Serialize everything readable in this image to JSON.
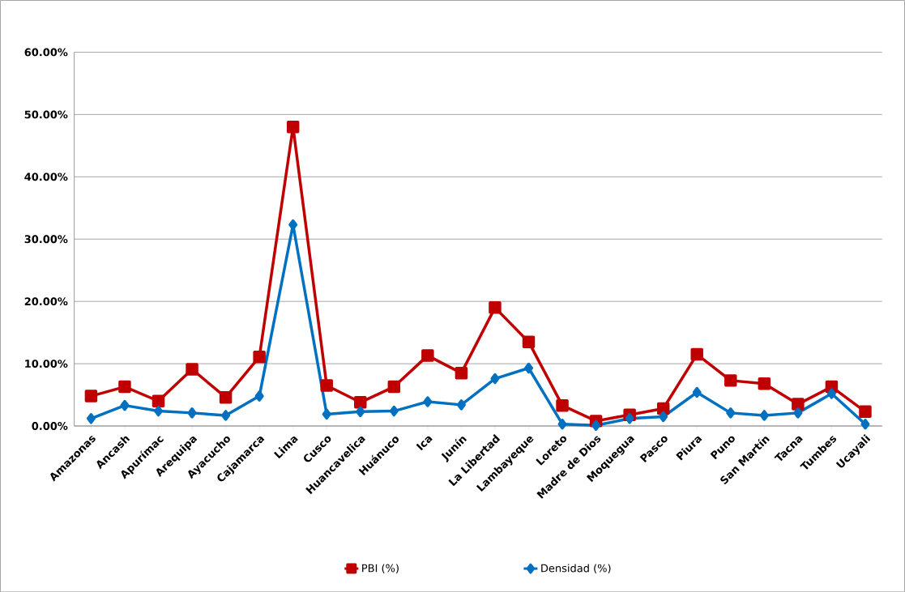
{
  "chart_data": {
    "type": "line",
    "categories": [
      "Amazonas",
      "Ancash",
      "Apurímac",
      "Arequipa",
      "Ayacucho",
      "Cajamarca",
      "Lima",
      "Cusco",
      "Huancavelica",
      "Huánuco",
      "Ica",
      "Junín",
      "La Libertad",
      "Lambayeque",
      "Loreto",
      "Madre de Dios",
      "Moquegua",
      "Pasco",
      "Piura",
      "Puno",
      "San Martín",
      "Tacna",
      "Tumbes",
      "Ucayali"
    ],
    "series": [
      {
        "name": "PBI (%)",
        "color": "#c00000",
        "marker": "square",
        "values": [
          4.8,
          6.3,
          4.0,
          9.1,
          4.6,
          11.1,
          48.0,
          6.5,
          3.8,
          6.3,
          11.3,
          8.5,
          19.0,
          13.5,
          3.3,
          0.8,
          1.8,
          2.8,
          11.5,
          7.3,
          6.8,
          3.5,
          6.3,
          2.3
        ]
      },
      {
        "name": "Densidad (%)",
        "color": "#0070c0",
        "marker": "diamond",
        "values": [
          1.2,
          3.3,
          2.4,
          2.1,
          1.7,
          4.8,
          32.3,
          1.9,
          2.3,
          2.4,
          3.9,
          3.4,
          7.6,
          9.3,
          0.3,
          0.1,
          1.2,
          1.5,
          5.4,
          2.1,
          1.7,
          2.1,
          5.2,
          0.3
        ]
      }
    ],
    "ylim": [
      0,
      60
    ],
    "yticks": [
      {
        "value": 0,
        "label": "0.00%"
      },
      {
        "value": 10,
        "label": "10.00%"
      },
      {
        "value": 20,
        "label": "20.00%"
      },
      {
        "value": 30,
        "label": "30.00%"
      },
      {
        "value": 40,
        "label": "40.00%"
      },
      {
        "value": 50,
        "label": "50.00%"
      },
      {
        "value": 60,
        "label": "60.00%"
      }
    ],
    "grid": "y",
    "legend": "bottom",
    "line_style": "solid"
  }
}
